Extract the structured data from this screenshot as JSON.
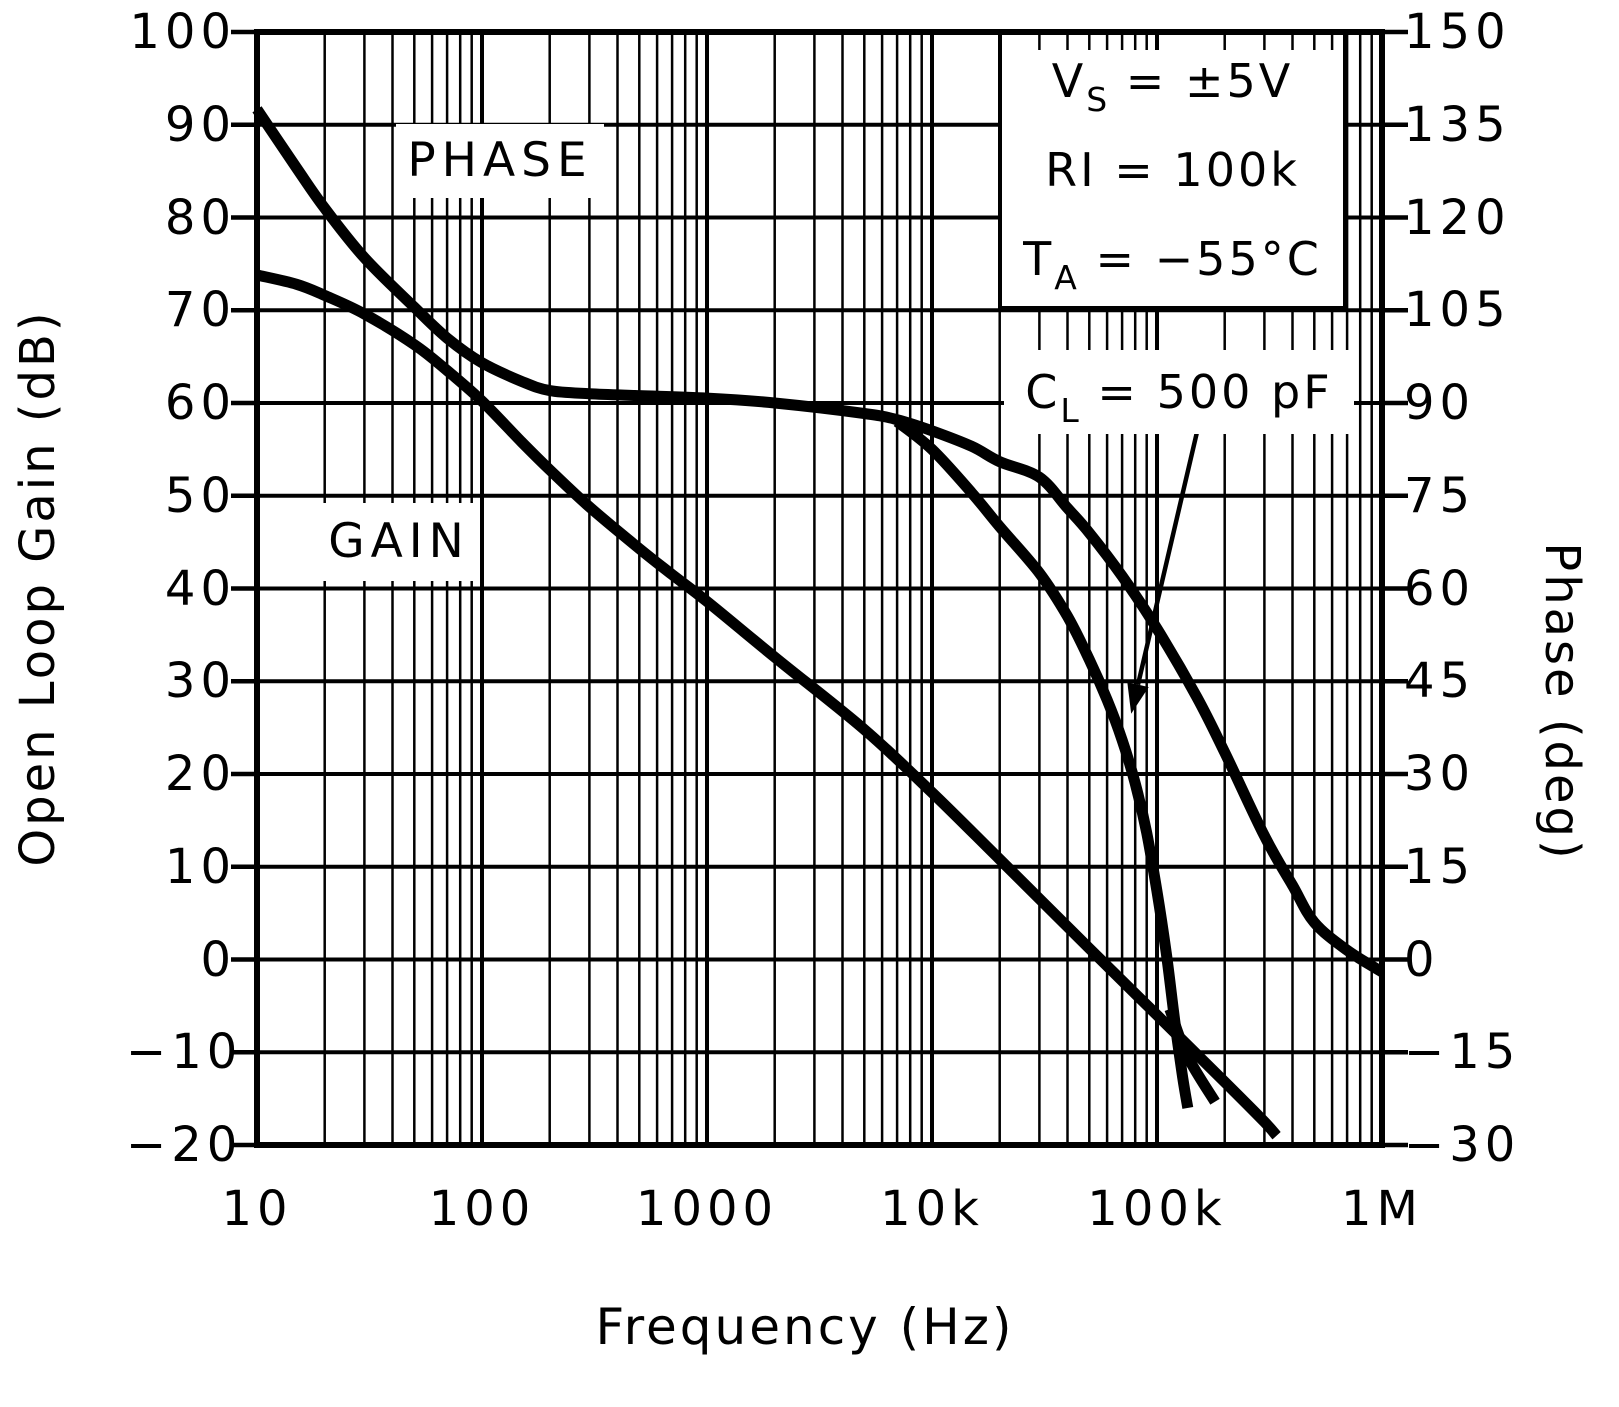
{
  "chart_data": {
    "type": "line",
    "title": "",
    "background": "#ffffff",
    "line_color": "#000000",
    "grid": true,
    "x_axis": {
      "label": "Frequency (Hz)",
      "scale": "log",
      "min": 10,
      "max": 1000000,
      "tick_labels": [
        "10",
        "100",
        "1000",
        "10k",
        "100k",
        "1M"
      ]
    },
    "y_left": {
      "label": "Open Loop Gain (dB)",
      "min": -20,
      "max": 100,
      "step": 10,
      "tick_labels": [
        "100",
        "90",
        "80",
        "70",
        "60",
        "50",
        "40",
        "30",
        "20",
        "10",
        "0",
        "−10",
        "−20"
      ]
    },
    "y_right": {
      "label": "Phase (deg)",
      "min": -30,
      "max": 150,
      "step": 15,
      "tick_labels": [
        "150",
        "135",
        "120",
        "105",
        "90",
        "75",
        "60",
        "45",
        "30",
        "15",
        "0",
        "−15",
        "−30"
      ]
    },
    "series": [
      {
        "name": "gain",
        "label": "GAIN",
        "axis": "left",
        "points": [
          [
            10,
            73.8
          ],
          [
            15,
            72.8
          ],
          [
            20,
            71.6
          ],
          [
            30,
            69.6
          ],
          [
            50,
            66.3
          ],
          [
            70,
            63.5
          ],
          [
            100,
            60.2
          ],
          [
            150,
            55.8
          ],
          [
            200,
            52.8
          ],
          [
            300,
            48.8
          ],
          [
            500,
            44.3
          ],
          [
            700,
            41.5
          ],
          [
            1000,
            38.6
          ],
          [
            2000,
            32.6
          ],
          [
            5000,
            24.8
          ],
          [
            10000,
            18
          ],
          [
            20000,
            10.8
          ],
          [
            50000,
            1.2
          ],
          [
            100000,
            -6
          ],
          [
            200000,
            -13.2
          ],
          [
            300000,
            -17.5
          ],
          [
            340000,
            -19
          ]
        ]
      },
      {
        "name": "phase",
        "label": "PHASE",
        "axis": "right",
        "points": [
          [
            10,
            137.5
          ],
          [
            15,
            128
          ],
          [
            20,
            121.5
          ],
          [
            30,
            113.5
          ],
          [
            50,
            105.5
          ],
          [
            70,
            100.5
          ],
          [
            100,
            96.5
          ],
          [
            150,
            93.5
          ],
          [
            200,
            92
          ],
          [
            300,
            91.5
          ],
          [
            500,
            91.2
          ],
          [
            1000,
            90.8
          ],
          [
            2000,
            90
          ],
          [
            5000,
            88.3
          ],
          [
            7000,
            87.3
          ],
          [
            10000,
            85.5
          ],
          [
            15000,
            83
          ],
          [
            20000,
            80.5
          ],
          [
            30000,
            78
          ],
          [
            40000,
            73
          ],
          [
            50000,
            69
          ],
          [
            70000,
            62
          ],
          [
            100000,
            53.5
          ],
          [
            150000,
            42.5
          ],
          [
            200000,
            33.5
          ],
          [
            300000,
            20
          ],
          [
            400000,
            12
          ],
          [
            500000,
            6
          ],
          [
            700000,
            1.5
          ],
          [
            1000000,
            -2
          ]
        ]
      },
      {
        "name": "phase-cl-500pf",
        "label": "CL = 500 pF",
        "axis": "right",
        "points": [
          [
            7000,
            87
          ],
          [
            10000,
            82.5
          ],
          [
            15000,
            75.5
          ],
          [
            20000,
            70
          ],
          [
            30000,
            62.5
          ],
          [
            40000,
            55.5
          ],
          [
            50000,
            48.5
          ],
          [
            60000,
            42
          ],
          [
            70000,
            35.5
          ],
          [
            80000,
            28.5
          ],
          [
            90000,
            20.5
          ],
          [
            100000,
            11
          ],
          [
            110000,
            1
          ],
          [
            120000,
            -10
          ],
          [
            130000,
            -19
          ],
          [
            137000,
            -24
          ]
        ]
      },
      {
        "name": "phase-cl-fork",
        "label": "",
        "axis": "right",
        "points": [
          [
            114000,
            -8
          ],
          [
            136000,
            -15.5
          ],
          [
            181000,
            -23
          ]
        ]
      }
    ],
    "annotations": {
      "conditions": [
        {
          "base": "V",
          "sub": "S",
          "rest": " = ±5V"
        },
        {
          "base": "RI",
          "sub": "",
          "rest": " = 100k"
        },
        {
          "base": "T",
          "sub": "A",
          "rest": " = −55°C"
        }
      ],
      "cl_callout": {
        "base": "C",
        "sub": "L",
        "rest": " = 500 pF"
      },
      "phase_label": "PHASE",
      "gain_label": "GAIN"
    }
  }
}
